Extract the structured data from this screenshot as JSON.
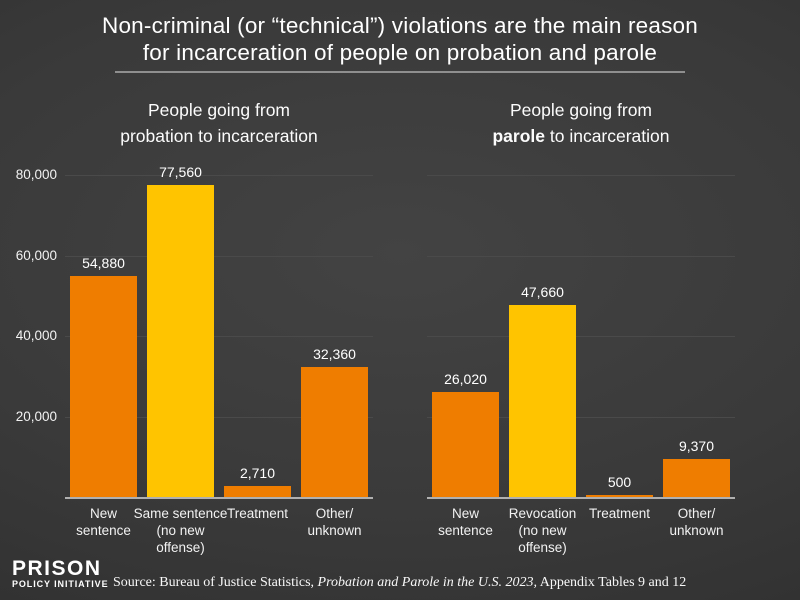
{
  "colors": {
    "orange": "#ef7d00",
    "yellow": "#ffc400",
    "background": "#3a3a3a",
    "gridline": "#4a4a4a",
    "axis": "#b0b0b0",
    "text": "#ffffff"
  },
  "title": {
    "line1": "Non-criminal (or “technical”) violations are the main reason",
    "line2": "for incarceration of people on probation and parole"
  },
  "chart_data": [
    {
      "type": "bar",
      "title": "People going from probation to incarceration",
      "subtitle": {
        "line1": "People going from",
        "bold": "",
        "rest": "probation to incarceration"
      },
      "categories": [
        [
          "New",
          "sentence"
        ],
        [
          "Same sentence",
          "(no new",
          "offense)"
        ],
        [
          "Treatment"
        ],
        [
          "Other/",
          "unknown"
        ]
      ],
      "values": [
        54880,
        77560,
        2710,
        32360
      ],
      "value_labels": [
        "54,880",
        "77,560",
        "2,710",
        "32,360"
      ],
      "bar_colors": [
        "#ef7d00",
        "#ffc400",
        "#ef7d00",
        "#ef7d00"
      ],
      "ylim": [
        0,
        80000
      ],
      "yticks": [
        20000,
        40000,
        60000,
        80000
      ],
      "ytick_labels": [
        "20,000",
        "40,000",
        "60,000",
        "80,000"
      ],
      "show_ytick_labels": true,
      "grid": true,
      "legend": "none"
    },
    {
      "type": "bar",
      "title": "People going from parole to incarceration",
      "subtitle": {
        "line1": "People going from",
        "bold": "parole",
        "rest": " to incarceration"
      },
      "categories": [
        [
          "New",
          "sentence"
        ],
        [
          "Revocation",
          "(no new",
          "offense)"
        ],
        [
          "Treatment"
        ],
        [
          "Other/",
          "unknown"
        ]
      ],
      "values": [
        26020,
        47660,
        500,
        9370
      ],
      "value_labels": [
        "26,020",
        "47,660",
        "500",
        "9,370"
      ],
      "bar_colors": [
        "#ef7d00",
        "#ffc400",
        "#ef7d00",
        "#ef7d00"
      ],
      "ylim": [
        0,
        80000
      ],
      "yticks": [
        20000,
        40000,
        60000,
        80000
      ],
      "ytick_labels": [
        "20,000",
        "40,000",
        "60,000",
        "80,000"
      ],
      "show_ytick_labels": false,
      "grid": true,
      "legend": "none"
    }
  ],
  "footer": {
    "logo_line1": "PRISON",
    "logo_line2": "POLICY INITIATIVE",
    "source_prefix": "Source: Bureau of Justice Statistics, ",
    "source_italic": "Probation and Parole in the U.S. 2023,",
    "source_suffix": " Appendix Tables 9 and 12"
  }
}
